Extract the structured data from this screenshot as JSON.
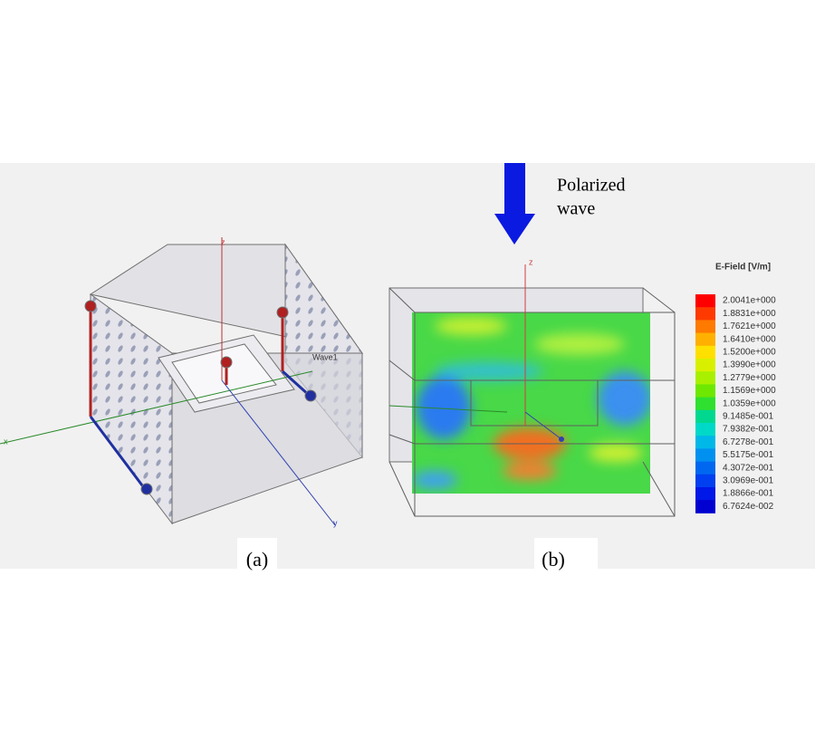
{
  "panels": [
    {
      "label": "(a)",
      "axes": {
        "z": "z",
        "x": "x",
        "y": "y"
      },
      "port": "Wave1"
    },
    {
      "label": "(b)",
      "axes": {
        "z": "z"
      }
    }
  ],
  "annotation": {
    "line1": "Polarized",
    "line2": "wave"
  },
  "colorbar": {
    "title": "E-Field [V/m]",
    "labels": [
      "2.0041e+000",
      "1.8831e+000",
      "1.7621e+000",
      "1.6410e+000",
      "1.5200e+000",
      "1.3990e+000",
      "1.2779e+000",
      "1.1569e+000",
      "1.0359e+000",
      "9.1485e-001",
      "7.9382e-001",
      "6.7278e-001",
      "5.5175e-001",
      "4.3072e-001",
      "3.0969e-001",
      "1.8866e-001",
      "6.7624e-002"
    ],
    "colors": [
      "#ff0000",
      "#ff3a00",
      "#ff7a00",
      "#ffb000",
      "#ffe000",
      "#d8f000",
      "#a8f000",
      "#6ee800",
      "#30e030",
      "#00d890",
      "#00d8c8",
      "#00b8e8",
      "#0090f0",
      "#0068f0",
      "#0040f0",
      "#0018e8",
      "#0000d0"
    ]
  }
}
